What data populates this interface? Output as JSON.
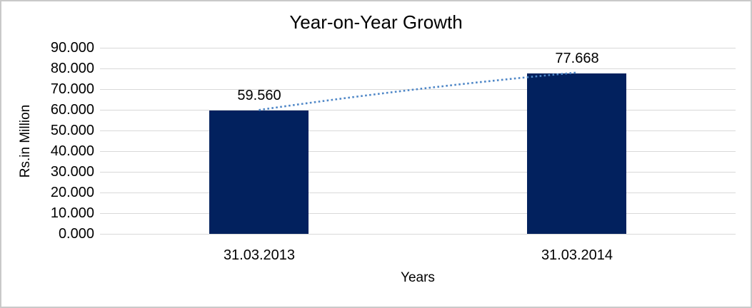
{
  "chart_data": {
    "type": "bar",
    "title": "Year-on-Year Growth",
    "xlabel": "Years",
    "ylabel": "Rs.in Million",
    "categories": [
      "31.03.2013",
      "31.03.2014"
    ],
    "values": [
      59.56,
      77.668
    ],
    "data_labels": [
      "59.560",
      "77.668"
    ],
    "ylim": [
      0,
      90
    ],
    "ytick_step": 10,
    "ytick_labels": [
      "0.000",
      "10.000",
      "20.000",
      "30.000",
      "40.000",
      "50.000",
      "60.000",
      "70.000",
      "80.000",
      "90.000"
    ],
    "grid": "horizontal-on",
    "legend": "none",
    "trendline": {
      "style": "dotted",
      "shape": "gentle-concave-down",
      "connects": [
        "top of 31.03.2013 bar",
        "top of 31.03.2014 bar"
      ]
    },
    "colors": {
      "bar": "#02215e",
      "trendline": "#4f87c7",
      "gridline": "#d9d9d9",
      "text": "#000000",
      "frame_border": "#c9c9c9",
      "background": "#ffffff"
    }
  }
}
